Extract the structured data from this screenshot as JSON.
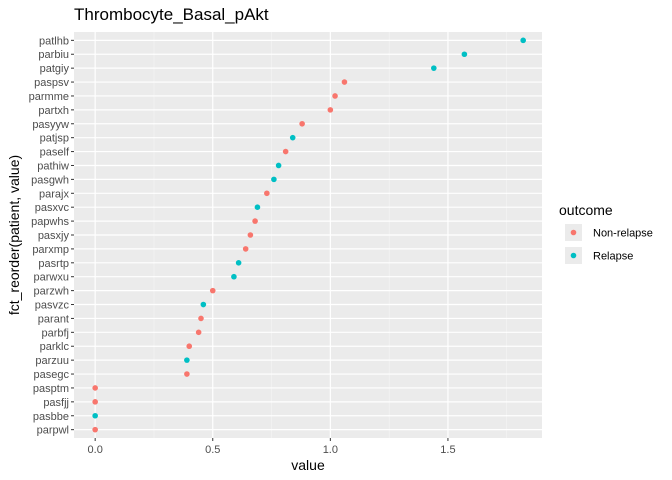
{
  "chart_data": {
    "type": "scatter",
    "title": "Thrombocyte_Basal_pAkt",
    "xlabel": "value",
    "ylabel": "fct_reorder(patient, value)",
    "xlim": [
      -0.09,
      1.9
    ],
    "x_ticks": [
      0.0,
      0.5,
      1.0,
      1.5
    ],
    "x_tick_labels": [
      "0.0",
      "0.5",
      "1.0",
      "1.5"
    ],
    "grid": true,
    "legend": {
      "title": "outcome",
      "placement": "right",
      "entries": [
        {
          "name": "Non-relapse",
          "color": "#F8766D"
        },
        {
          "name": "Relapse",
          "color": "#00BFC4"
        }
      ]
    },
    "points": [
      {
        "patient": "patlhb",
        "value": 1.82,
        "outcome": "Relapse"
      },
      {
        "patient": "parbiu",
        "value": 1.57,
        "outcome": "Relapse"
      },
      {
        "patient": "patgiy",
        "value": 1.44,
        "outcome": "Relapse"
      },
      {
        "patient": "paspsv",
        "value": 1.06,
        "outcome": "Non-relapse"
      },
      {
        "patient": "parmme",
        "value": 1.02,
        "outcome": "Non-relapse"
      },
      {
        "patient": "partxh",
        "value": 1.0,
        "outcome": "Non-relapse"
      },
      {
        "patient": "pasyyw",
        "value": 0.88,
        "outcome": "Non-relapse"
      },
      {
        "patient": "patjsp",
        "value": 0.84,
        "outcome": "Relapse"
      },
      {
        "patient": "paself",
        "value": 0.81,
        "outcome": "Non-relapse"
      },
      {
        "patient": "pathiw",
        "value": 0.78,
        "outcome": "Relapse"
      },
      {
        "patient": "pasgwh",
        "value": 0.76,
        "outcome": "Relapse"
      },
      {
        "patient": "parajx",
        "value": 0.73,
        "outcome": "Non-relapse"
      },
      {
        "patient": "pasxvc",
        "value": 0.69,
        "outcome": "Relapse"
      },
      {
        "patient": "papwhs",
        "value": 0.68,
        "outcome": "Non-relapse"
      },
      {
        "patient": "pasxjy",
        "value": 0.66,
        "outcome": "Non-relapse"
      },
      {
        "patient": "parxmp",
        "value": 0.64,
        "outcome": "Non-relapse"
      },
      {
        "patient": "pasrtp",
        "value": 0.61,
        "outcome": "Relapse"
      },
      {
        "patient": "parwxu",
        "value": 0.59,
        "outcome": "Relapse"
      },
      {
        "patient": "parzwh",
        "value": 0.5,
        "outcome": "Non-relapse"
      },
      {
        "patient": "pasvzc",
        "value": 0.46,
        "outcome": "Relapse"
      },
      {
        "patient": "parant",
        "value": 0.45,
        "outcome": "Non-relapse"
      },
      {
        "patient": "parbfj",
        "value": 0.44,
        "outcome": "Non-relapse"
      },
      {
        "patient": "parklc",
        "value": 0.4,
        "outcome": "Non-relapse"
      },
      {
        "patient": "parzuu",
        "value": 0.39,
        "outcome": "Relapse"
      },
      {
        "patient": "pasegc",
        "value": 0.39,
        "outcome": "Non-relapse"
      },
      {
        "patient": "pasptm",
        "value": 0.0,
        "outcome": "Non-relapse"
      },
      {
        "patient": "pasfjj",
        "value": 0.0,
        "outcome": "Non-relapse"
      },
      {
        "patient": "pasbbe",
        "value": 0.0,
        "outcome": "Relapse"
      },
      {
        "patient": "parpwl",
        "value": 0.0,
        "outcome": "Non-relapse"
      }
    ]
  }
}
